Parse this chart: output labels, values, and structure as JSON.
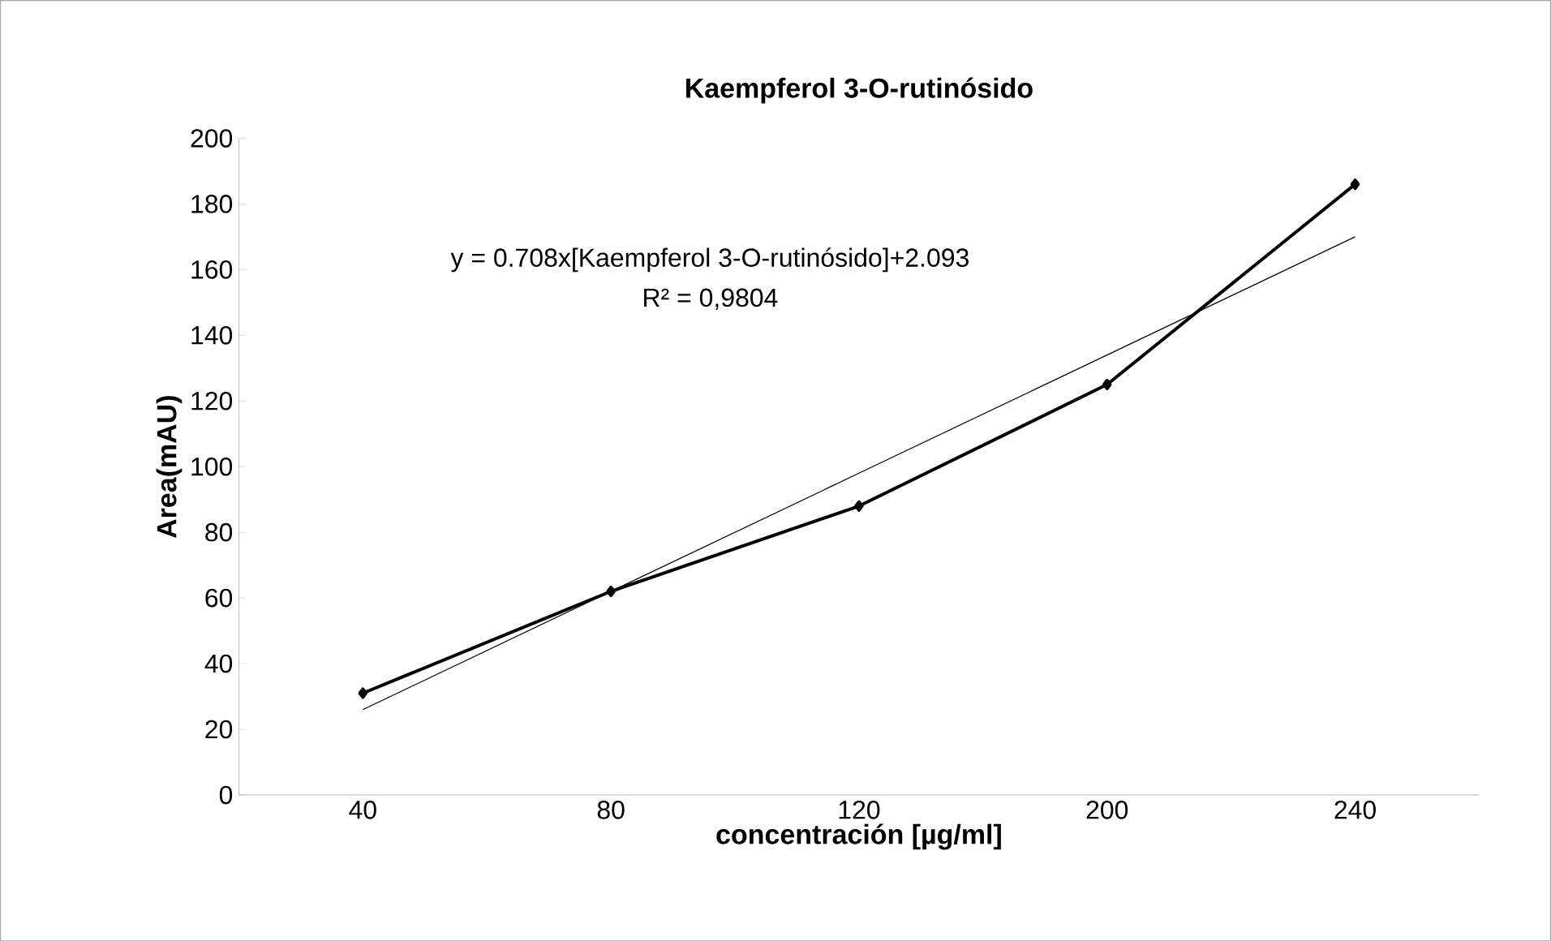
{
  "chart_data": {
    "type": "line",
    "title": "Kaempferol  3-O-rutinósido",
    "xlabel": "concentración [µg/ml]",
    "ylabel": "Area(mAU)",
    "categories": [
      "40",
      "80",
      "120",
      "200",
      "240"
    ],
    "series": [
      {
        "color": "#000000",
        "values": [
          31,
          62,
          88,
          125,
          186
        ],
        "marker": "diamond"
      },
      {
        "type": "line",
        "color": "#000000",
        "values": [
          26,
          62,
          98,
          134,
          170
        ],
        "marker": "none"
      }
    ],
    "annotations": [
      "y = 0.708x[Kaempferol 3-O-rutinósido]+2.093",
      "R² = 0,9804"
    ],
    "ylim": [
      0,
      200
    ],
    "yticks": [
      0,
      20,
      40,
      60,
      80,
      100,
      120,
      140,
      160,
      180,
      200
    ],
    "grid": false
  }
}
